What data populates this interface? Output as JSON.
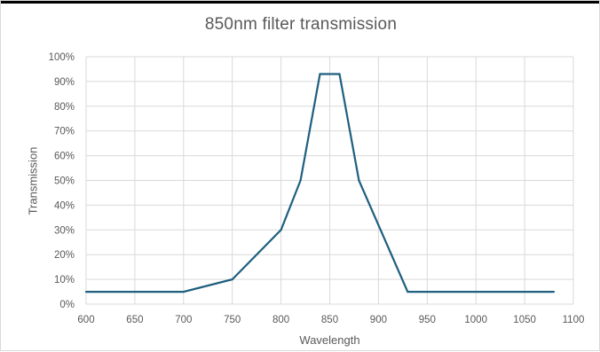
{
  "chart_data": {
    "type": "line",
    "title": "850nm filter transmission",
    "xlabel": "Wavelength",
    "ylabel": "Transmission",
    "xlim": [
      600,
      1100
    ],
    "ylim": [
      0,
      100
    ],
    "x_ticks": [
      600,
      650,
      700,
      750,
      800,
      850,
      900,
      950,
      1000,
      1050,
      1100
    ],
    "y_ticks": [
      "0%",
      "10%",
      "20%",
      "30%",
      "40%",
      "50%",
      "60%",
      "70%",
      "80%",
      "90%",
      "100%"
    ],
    "grid": true,
    "legend": "none",
    "series": [
      {
        "color": "#1f5f7f",
        "x": [
          600,
          700,
          750,
          800,
          820,
          840,
          860,
          880,
          930,
          1080
        ],
        "y": [
          5,
          5,
          10,
          30,
          50,
          93,
          93,
          50,
          5,
          5
        ]
      }
    ]
  }
}
